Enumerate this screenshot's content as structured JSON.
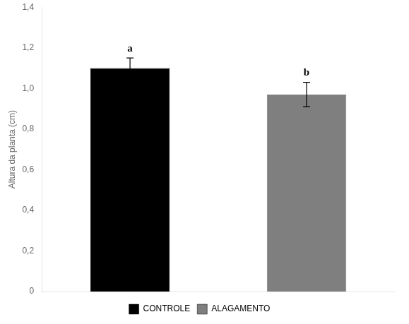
{
  "chart_data": {
    "type": "bar",
    "categories": [
      "CONTROLE",
      "ALAGAMENTO"
    ],
    "values": [
      1.1,
      0.97
    ],
    "errors": [
      0.05,
      0.06
    ],
    "colors": [
      "#000000",
      "#7f7f7f"
    ],
    "annotations": [
      "a",
      "b"
    ],
    "ylabel": "Altura da planta (cm)",
    "ylim": [
      0,
      1.4
    ],
    "yticks": [
      0,
      {
        "value": 0.2,
        "label": "0,2"
      },
      {
        "value": 0.4,
        "label": "0,4"
      },
      {
        "value": 0.6,
        "label": "0,6"
      },
      {
        "value": 0.8,
        "label": "0,8"
      },
      {
        "value": 1.0,
        "label": "1,0"
      },
      {
        "value": 1.2,
        "label": "1,2"
      },
      {
        "value": 1.4,
        "label": "1,4"
      }
    ],
    "legend": "bottom",
    "tick_labels": "y"
  }
}
